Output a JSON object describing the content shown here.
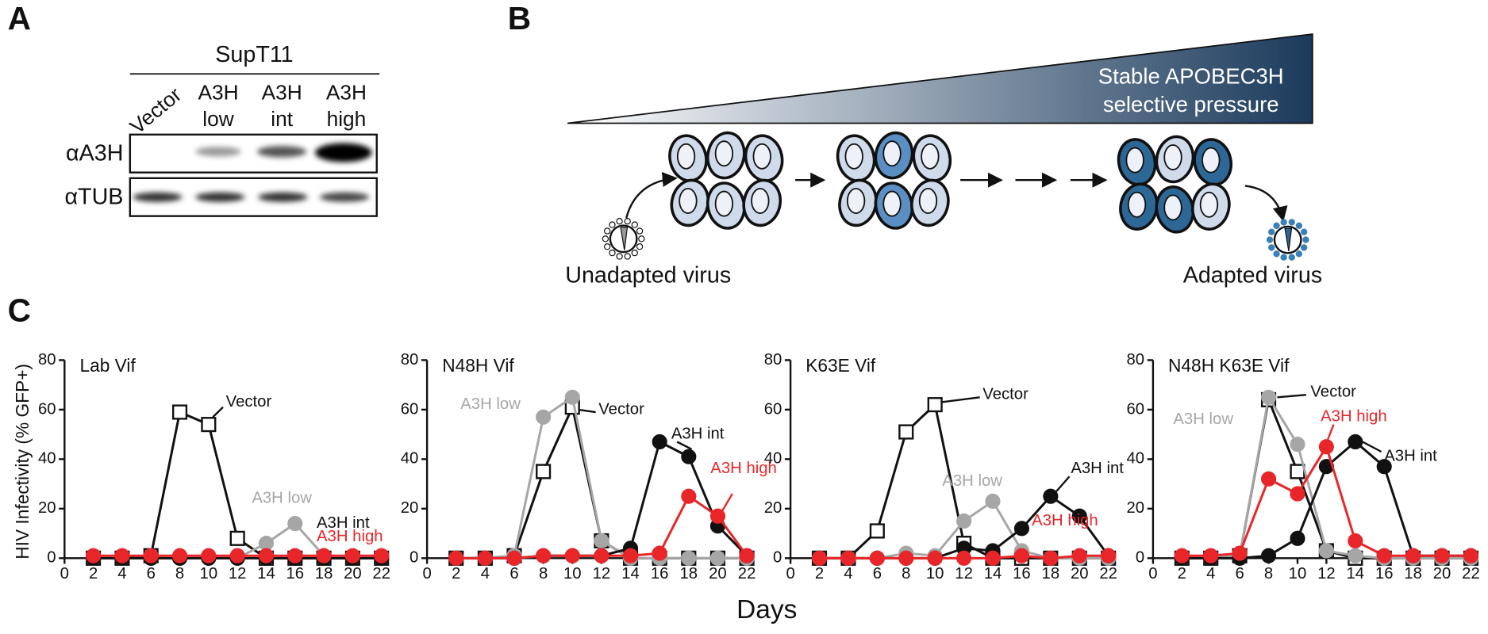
{
  "panel_labels": [
    "A",
    "B",
    "C"
  ],
  "panel_a": {
    "cell_line": "SupT11",
    "lanes": [
      [
        "Vector"
      ],
      [
        "A3H",
        "low"
      ],
      [
        "A3H",
        "int"
      ],
      [
        "A3H",
        "high"
      ]
    ],
    "rows": [
      "αA3H",
      "αTUB"
    ]
  },
  "panel_b": {
    "pressure": [
      "Stable APOBEC3H",
      "selective pressure"
    ],
    "start": "Unadapted virus",
    "end": "Adapted virus"
  },
  "axis_labels": {
    "y": "HIV Infectivity (% GFP+)",
    "x": "Days"
  },
  "chart_data": [
    {
      "type": "line",
      "title": "Lab Vif",
      "x": [
        2,
        4,
        6,
        8,
        10,
        12,
        14,
        16,
        18,
        20,
        22
      ],
      "xlim": [
        0,
        22
      ],
      "xticks": [
        0,
        2,
        4,
        6,
        8,
        10,
        12,
        14,
        16,
        18,
        20,
        22
      ],
      "ylim": [
        0,
        80
      ],
      "yticks": [
        0,
        20,
        40,
        60,
        80
      ],
      "series": [
        {
          "name": "Vector",
          "color": "#111111",
          "values": [
            0,
            0,
            1,
            59,
            54,
            8,
            0,
            0,
            0,
            0,
            0
          ]
        },
        {
          "name": "A3H low",
          "color": "#a6a6a6",
          "values": [
            0,
            0,
            0,
            0,
            0,
            0,
            6,
            14,
            1,
            0,
            0
          ]
        },
        {
          "name": "A3H int",
          "color": "#111111",
          "values": [
            0,
            0,
            0,
            0,
            0,
            0,
            0,
            0,
            0,
            0,
            0
          ]
        },
        {
          "name": "A3H high",
          "color": "#e8262a",
          "values": [
            1,
            1,
            1,
            1,
            1,
            1,
            1,
            1,
            1,
            1,
            1
          ]
        }
      ]
    },
    {
      "type": "line",
      "title": "N48H Vif",
      "x": [
        2,
        4,
        6,
        8,
        10,
        12,
        14,
        16,
        18,
        20,
        22
      ],
      "xlim": [
        0,
        22
      ],
      "xticks": [
        0,
        2,
        4,
        6,
        8,
        10,
        12,
        14,
        16,
        18,
        20,
        22
      ],
      "ylim": [
        0,
        80
      ],
      "yticks": [
        0,
        20,
        40,
        60,
        80
      ],
      "series": [
        {
          "name": "Vector",
          "color": "#111111",
          "values": [
            0,
            0,
            1,
            35,
            61,
            7,
            0,
            0,
            0,
            0,
            0
          ]
        },
        {
          "name": "A3H low",
          "color": "#a6a6a6",
          "values": [
            0,
            0,
            1,
            57,
            65,
            7,
            0,
            0,
            0,
            0,
            0
          ]
        },
        {
          "name": "A3H int",
          "color": "#111111",
          "values": [
            0,
            0,
            0,
            1,
            1,
            1,
            4,
            47,
            41,
            13,
            1
          ]
        },
        {
          "name": "A3H high",
          "color": "#e8262a",
          "values": [
            0,
            0,
            0,
            1,
            1,
            1,
            1,
            2,
            25,
            17,
            1
          ]
        }
      ]
    },
    {
      "type": "line",
      "title": "K63E Vif",
      "x": [
        2,
        4,
        6,
        8,
        10,
        12,
        14,
        16,
        18,
        20,
        22
      ],
      "xlim": [
        0,
        22
      ],
      "xticks": [
        0,
        2,
        4,
        6,
        8,
        10,
        12,
        14,
        16,
        18,
        20,
        22
      ],
      "ylim": [
        0,
        80
      ],
      "yticks": [
        0,
        20,
        40,
        60,
        80
      ],
      "series": [
        {
          "name": "Vector",
          "color": "#111111",
          "values": [
            0,
            0,
            11,
            51,
            62,
            6,
            0,
            0,
            0,
            0,
            0
          ]
        },
        {
          "name": "A3H low",
          "color": "#a6a6a6",
          "values": [
            0,
            0,
            0,
            2,
            1,
            15,
            23,
            3,
            0,
            0,
            0
          ]
        },
        {
          "name": "A3H int",
          "color": "#111111",
          "values": [
            0,
            0,
            0,
            0,
            0,
            4,
            3,
            12,
            25,
            17,
            1
          ]
        },
        {
          "name": "A3H high",
          "color": "#e8262a",
          "values": [
            0,
            0,
            0,
            0,
            0,
            0,
            0,
            1,
            0,
            1,
            1
          ]
        }
      ]
    },
    {
      "type": "line",
      "title": "N48H K63E Vif",
      "x": [
        2,
        4,
        6,
        8,
        10,
        12,
        14,
        16,
        18,
        20,
        22
      ],
      "xlim": [
        0,
        22
      ],
      "xticks": [
        0,
        2,
        4,
        6,
        8,
        10,
        12,
        14,
        16,
        18,
        20,
        22
      ],
      "ylim": [
        0,
        80
      ],
      "yticks": [
        0,
        20,
        40,
        60,
        80
      ],
      "series": [
        {
          "name": "Vector",
          "color": "#111111",
          "values": [
            0,
            0,
            1,
            64,
            35,
            3,
            0,
            0,
            0,
            0,
            0
          ]
        },
        {
          "name": "A3H low",
          "color": "#a6a6a6",
          "values": [
            0,
            0,
            1,
            65,
            46,
            3,
            1,
            0,
            0,
            0,
            0
          ]
        },
        {
          "name": "A3H int",
          "color": "#111111",
          "values": [
            0,
            0,
            0,
            1,
            8,
            37,
            47,
            37,
            1,
            1,
            1
          ]
        },
        {
          "name": "A3H high",
          "color": "#e8262a",
          "values": [
            1,
            1,
            2,
            32,
            26,
            45,
            7,
            1,
            1,
            1,
            1
          ]
        }
      ]
    }
  ]
}
